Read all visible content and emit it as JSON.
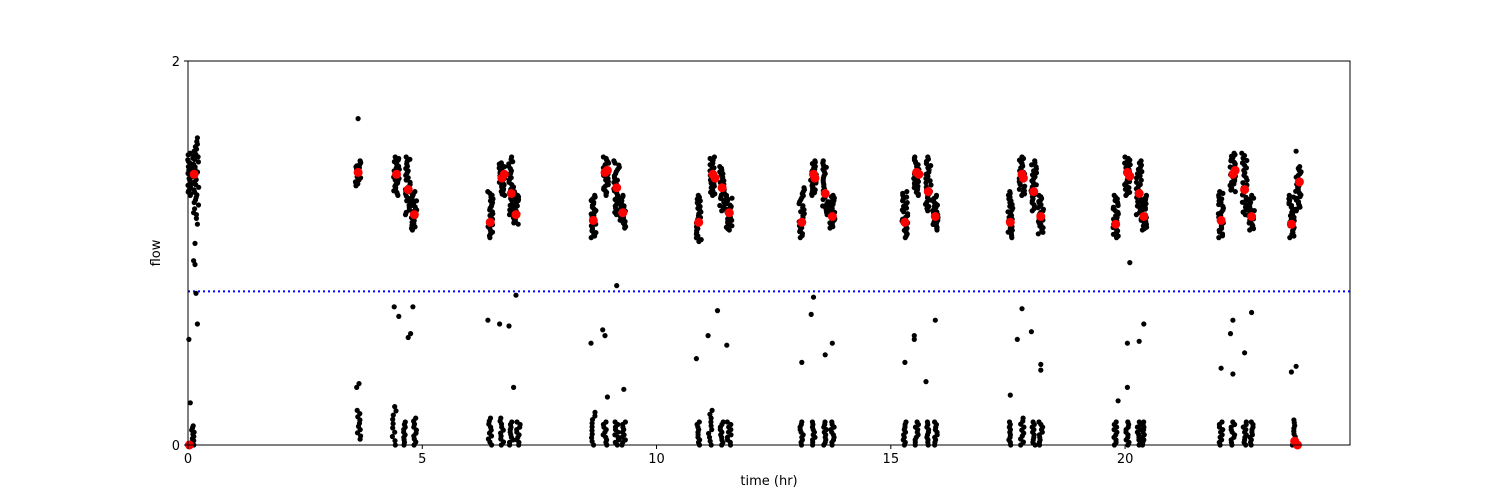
{
  "chart_data": {
    "type": "scatter",
    "xlabel": "time (hr)",
    "ylabel": "flow",
    "xlim": [
      0,
      24.8
    ],
    "ylim": [
      0,
      2
    ],
    "xticks": [
      0,
      5,
      10,
      15,
      20
    ],
    "yticks": [
      0,
      2
    ],
    "threshold": {
      "y": 0.8,
      "style": "dotted",
      "color": "#0000ff"
    },
    "grid": false,
    "colors": {
      "raw": "#000000",
      "summary": "#ff0000",
      "threshold": "#0000ff"
    },
    "clusters": [
      {
        "x": 0.05,
        "ylo": 1.3,
        "yhi": 1.52
      },
      {
        "x": 0.17,
        "ylo": 1.25,
        "yhi": 1.58
      },
      {
        "x": 3.63,
        "ylo": 1.35,
        "yhi": 1.48
      },
      {
        "x": 4.45,
        "ylo": 1.3,
        "yhi": 1.5
      },
      {
        "x": 4.7,
        "ylo": 1.2,
        "yhi": 1.5
      },
      {
        "x": 4.83,
        "ylo": 1.12,
        "yhi": 1.32
      },
      {
        "x": 6.45,
        "ylo": 1.08,
        "yhi": 1.32
      },
      {
        "x": 6.7,
        "ylo": 1.3,
        "yhi": 1.47
      },
      {
        "x": 6.9,
        "ylo": 1.2,
        "yhi": 1.5
      },
      {
        "x": 7.0,
        "ylo": 1.15,
        "yhi": 1.32
      },
      {
        "x": 8.65,
        "ylo": 1.08,
        "yhi": 1.3
      },
      {
        "x": 8.92,
        "ylo": 1.3,
        "yhi": 1.5
      },
      {
        "x": 9.15,
        "ylo": 1.2,
        "yhi": 1.48
      },
      {
        "x": 9.28,
        "ylo": 1.13,
        "yhi": 1.3
      },
      {
        "x": 10.9,
        "ylo": 1.06,
        "yhi": 1.3
      },
      {
        "x": 11.2,
        "ylo": 1.3,
        "yhi": 1.5
      },
      {
        "x": 11.4,
        "ylo": 1.22,
        "yhi": 1.45
      },
      {
        "x": 11.55,
        "ylo": 1.12,
        "yhi": 1.3
      },
      {
        "x": 13.1,
        "ylo": 1.08,
        "yhi": 1.34
      },
      {
        "x": 13.35,
        "ylo": 1.3,
        "yhi": 1.48
      },
      {
        "x": 13.6,
        "ylo": 1.2,
        "yhi": 1.48
      },
      {
        "x": 13.75,
        "ylo": 1.13,
        "yhi": 1.3
      },
      {
        "x": 15.3,
        "ylo": 1.08,
        "yhi": 1.32
      },
      {
        "x": 15.55,
        "ylo": 1.3,
        "yhi": 1.5
      },
      {
        "x": 15.8,
        "ylo": 1.22,
        "yhi": 1.5
      },
      {
        "x": 15.95,
        "ylo": 1.12,
        "yhi": 1.3
      },
      {
        "x": 17.55,
        "ylo": 1.08,
        "yhi": 1.32
      },
      {
        "x": 17.8,
        "ylo": 1.3,
        "yhi": 1.5
      },
      {
        "x": 18.05,
        "ylo": 1.22,
        "yhi": 1.48
      },
      {
        "x": 18.2,
        "ylo": 1.1,
        "yhi": 1.3
      },
      {
        "x": 19.8,
        "ylo": 1.08,
        "yhi": 1.3
      },
      {
        "x": 20.05,
        "ylo": 1.3,
        "yhi": 1.5
      },
      {
        "x": 20.3,
        "ylo": 1.2,
        "yhi": 1.48
      },
      {
        "x": 20.4,
        "ylo": 1.12,
        "yhi": 1.3
      },
      {
        "x": 22.05,
        "ylo": 1.08,
        "yhi": 1.32
      },
      {
        "x": 22.3,
        "ylo": 1.32,
        "yhi": 1.52
      },
      {
        "x": 22.55,
        "ylo": 1.2,
        "yhi": 1.52
      },
      {
        "x": 22.7,
        "ylo": 1.12,
        "yhi": 1.3
      },
      {
        "x": 23.55,
        "ylo": 1.08,
        "yhi": 1.3
      },
      {
        "x": 23.7,
        "ylo": 1.22,
        "yhi": 1.45
      }
    ],
    "scatter_points": [
      [
        0.02,
        0.55
      ],
      [
        0.05,
        0.22
      ],
      [
        0.12,
        0.96
      ],
      [
        0.15,
        0.94
      ],
      [
        0.17,
        0.79
      ],
      [
        0.2,
        0.63
      ],
      [
        0.15,
        1.05
      ],
      [
        0.2,
        1.15
      ],
      [
        0.18,
        1.18
      ],
      [
        0.18,
        1.2
      ],
      [
        0.12,
        1.21
      ],
      [
        0.14,
        1.23
      ],
      [
        0.13,
        1.53
      ],
      [
        0.2,
        1.6
      ],
      [
        3.63,
        1.7
      ],
      [
        3.6,
        0.3
      ],
      [
        3.65,
        0.32
      ],
      [
        4.4,
        0.72
      ],
      [
        4.5,
        0.67
      ],
      [
        4.8,
        0.72
      ],
      [
        4.7,
        0.56
      ],
      [
        4.75,
        0.58
      ],
      [
        6.4,
        0.65
      ],
      [
        6.65,
        0.63
      ],
      [
        6.85,
        0.62
      ],
      [
        7.0,
        0.78
      ],
      [
        6.95,
        0.3
      ],
      [
        8.6,
        0.53
      ],
      [
        8.85,
        0.6
      ],
      [
        8.9,
        0.57
      ],
      [
        9.15,
        0.83
      ],
      [
        8.95,
        0.25
      ],
      [
        9.3,
        0.29
      ],
      [
        10.85,
        0.45
      ],
      [
        11.1,
        0.57
      ],
      [
        11.3,
        0.7
      ],
      [
        11.5,
        0.52
      ],
      [
        13.1,
        0.43
      ],
      [
        13.35,
        0.77
      ],
      [
        13.3,
        0.68
      ],
      [
        13.6,
        0.47
      ],
      [
        13.75,
        0.53
      ],
      [
        15.3,
        0.43
      ],
      [
        15.5,
        0.57
      ],
      [
        15.5,
        0.55
      ],
      [
        15.95,
        0.65
      ],
      [
        15.75,
        0.33
      ],
      [
        17.55,
        0.26
      ],
      [
        17.7,
        0.55
      ],
      [
        17.8,
        0.71
      ],
      [
        18.0,
        0.59
      ],
      [
        18.2,
        0.42
      ],
      [
        18.2,
        0.39
      ],
      [
        19.85,
        0.23
      ],
      [
        20.05,
        0.53
      ],
      [
        20.05,
        0.3
      ],
      [
        20.1,
        0.95
      ],
      [
        20.3,
        0.54
      ],
      [
        20.4,
        0.63
      ],
      [
        22.05,
        0.4
      ],
      [
        22.25,
        0.58
      ],
      [
        22.3,
        0.37
      ],
      [
        22.3,
        0.65
      ],
      [
        22.55,
        0.48
      ],
      [
        22.7,
        0.69
      ],
      [
        23.55,
        0.38
      ],
      [
        23.65,
        0.41
      ],
      [
        23.65,
        1.53
      ]
    ],
    "low_bands": [
      {
        "x": 0.1,
        "ylo": 0.0,
        "yhi": 0.1
      },
      {
        "x": 3.65,
        "ylo": 0.03,
        "yhi": 0.18
      },
      {
        "x": 4.4,
        "ylo": 0.0,
        "yhi": 0.2
      },
      {
        "x": 4.6,
        "ylo": 0.0,
        "yhi": 0.12
      },
      {
        "x": 4.85,
        "ylo": 0.0,
        "yhi": 0.14
      },
      {
        "x": 6.45,
        "ylo": 0.0,
        "yhi": 0.14
      },
      {
        "x": 6.7,
        "ylo": 0.0,
        "yhi": 0.14
      },
      {
        "x": 6.9,
        "ylo": 0.0,
        "yhi": 0.12
      },
      {
        "x": 7.05,
        "ylo": 0.0,
        "yhi": 0.12
      },
      {
        "x": 8.65,
        "ylo": 0.0,
        "yhi": 0.17
      },
      {
        "x": 8.9,
        "ylo": 0.0,
        "yhi": 0.12
      },
      {
        "x": 9.15,
        "ylo": 0.0,
        "yhi": 0.12
      },
      {
        "x": 9.3,
        "ylo": 0.0,
        "yhi": 0.12
      },
      {
        "x": 10.9,
        "ylo": 0.0,
        "yhi": 0.12
      },
      {
        "x": 11.15,
        "ylo": 0.0,
        "yhi": 0.18
      },
      {
        "x": 11.4,
        "ylo": 0.0,
        "yhi": 0.12
      },
      {
        "x": 11.55,
        "ylo": 0.0,
        "yhi": 0.12
      },
      {
        "x": 13.1,
        "ylo": 0.0,
        "yhi": 0.12
      },
      {
        "x": 13.35,
        "ylo": 0.0,
        "yhi": 0.12
      },
      {
        "x": 13.6,
        "ylo": 0.0,
        "yhi": 0.12
      },
      {
        "x": 13.75,
        "ylo": 0.0,
        "yhi": 0.12
      },
      {
        "x": 15.3,
        "ylo": 0.0,
        "yhi": 0.12
      },
      {
        "x": 15.55,
        "ylo": 0.0,
        "yhi": 0.12
      },
      {
        "x": 15.8,
        "ylo": 0.0,
        "yhi": 0.12
      },
      {
        "x": 15.95,
        "ylo": 0.0,
        "yhi": 0.12
      },
      {
        "x": 17.55,
        "ylo": 0.0,
        "yhi": 0.12
      },
      {
        "x": 17.8,
        "ylo": 0.0,
        "yhi": 0.14
      },
      {
        "x": 18.05,
        "ylo": 0.0,
        "yhi": 0.12
      },
      {
        "x": 18.2,
        "ylo": 0.0,
        "yhi": 0.12
      },
      {
        "x": 19.8,
        "ylo": 0.0,
        "yhi": 0.12
      },
      {
        "x": 20.05,
        "ylo": 0.0,
        "yhi": 0.12
      },
      {
        "x": 20.3,
        "ylo": 0.0,
        "yhi": 0.12
      },
      {
        "x": 20.4,
        "ylo": 0.0,
        "yhi": 0.12
      },
      {
        "x": 22.05,
        "ylo": 0.0,
        "yhi": 0.12
      },
      {
        "x": 22.3,
        "ylo": 0.0,
        "yhi": 0.12
      },
      {
        "x": 22.55,
        "ylo": 0.0,
        "yhi": 0.12
      },
      {
        "x": 22.7,
        "ylo": 0.0,
        "yhi": 0.12
      },
      {
        "x": 23.6,
        "ylo": 0.0,
        "yhi": 0.13
      }
    ],
    "summary_points": [
      [
        0.13,
        1.41
      ],
      [
        0.03,
        0.0
      ],
      [
        3.63,
        1.42
      ],
      [
        4.45,
        1.41
      ],
      [
        4.7,
        1.33
      ],
      [
        4.83,
        1.2
      ],
      [
        6.45,
        1.16
      ],
      [
        6.7,
        1.39
      ],
      [
        6.75,
        1.41
      ],
      [
        6.9,
        1.31
      ],
      [
        7.0,
        1.2
      ],
      [
        8.65,
        1.17
      ],
      [
        8.9,
        1.42
      ],
      [
        8.95,
        1.43
      ],
      [
        9.15,
        1.34
      ],
      [
        9.28,
        1.21
      ],
      [
        10.9,
        1.16
      ],
      [
        11.2,
        1.41
      ],
      [
        11.25,
        1.39
      ],
      [
        11.4,
        1.34
      ],
      [
        11.55,
        1.21
      ],
      [
        13.1,
        1.16
      ],
      [
        13.35,
        1.41
      ],
      [
        13.38,
        1.39
      ],
      [
        13.6,
        1.31
      ],
      [
        13.75,
        1.19
      ],
      [
        15.3,
        1.16
      ],
      [
        15.55,
        1.42
      ],
      [
        15.6,
        1.41
      ],
      [
        15.8,
        1.32
      ],
      [
        15.95,
        1.19
      ],
      [
        17.55,
        1.16
      ],
      [
        17.8,
        1.41
      ],
      [
        17.83,
        1.39
      ],
      [
        18.05,
        1.32
      ],
      [
        18.2,
        1.19
      ],
      [
        19.8,
        1.15
      ],
      [
        20.05,
        1.42
      ],
      [
        20.1,
        1.4
      ],
      [
        20.3,
        1.31
      ],
      [
        20.4,
        1.19
      ],
      [
        22.05,
        1.17
      ],
      [
        22.3,
        1.41
      ],
      [
        22.35,
        1.43
      ],
      [
        22.55,
        1.33
      ],
      [
        22.7,
        1.19
      ],
      [
        23.55,
        1.15
      ],
      [
        23.72,
        1.37
      ],
      [
        23.62,
        0.02
      ],
      [
        23.68,
        0.0
      ]
    ]
  }
}
